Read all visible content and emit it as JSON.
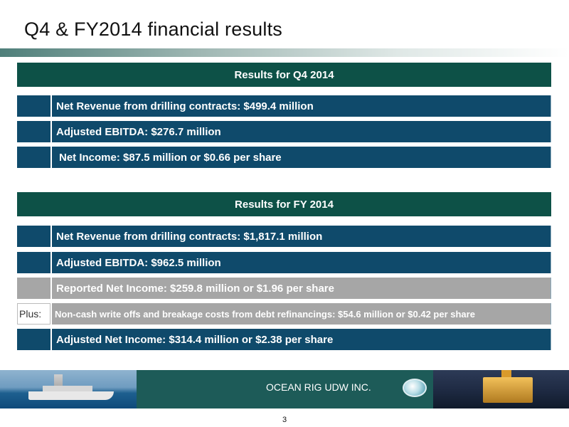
{
  "title": "Q4 & FY2014 financial results",
  "q4": {
    "header": "Results for Q4 2014",
    "rows": [
      {
        "text": "Net Revenue from drilling contracts: $499.4 million"
      },
      {
        "text": "Adjusted EBITDA: $276.7 million"
      },
      {
        "text": "Net Income: $87.5 million or $0.66 per share"
      }
    ]
  },
  "fy": {
    "header": "Results for FY 2014",
    "rows": [
      {
        "lead": "",
        "text": "Net Revenue from drilling contracts: $1,817.1 million"
      },
      {
        "lead": "",
        "text": "Adjusted EBITDA: $962.5 million"
      },
      {
        "lead": "",
        "text": "Reported Net Income: $259.8 million or $1.96 per share"
      },
      {
        "lead": "Plus:",
        "text": "Non-cash write offs and breakage costs from debt refinancings: $54.6 million or $0.42 per share"
      },
      {
        "lead": "",
        "text": "Adjusted Net Income: $314.4 million or $2.38 per share"
      }
    ]
  },
  "footer": {
    "company": "OCEAN RIG UDW INC."
  },
  "page_number": "3",
  "colors": {
    "header_bg": "#0d5147",
    "row_bg": "#0f4a6b",
    "grey_row_bg": "#a6a6a6",
    "footer_bg": "#1d5b58"
  }
}
